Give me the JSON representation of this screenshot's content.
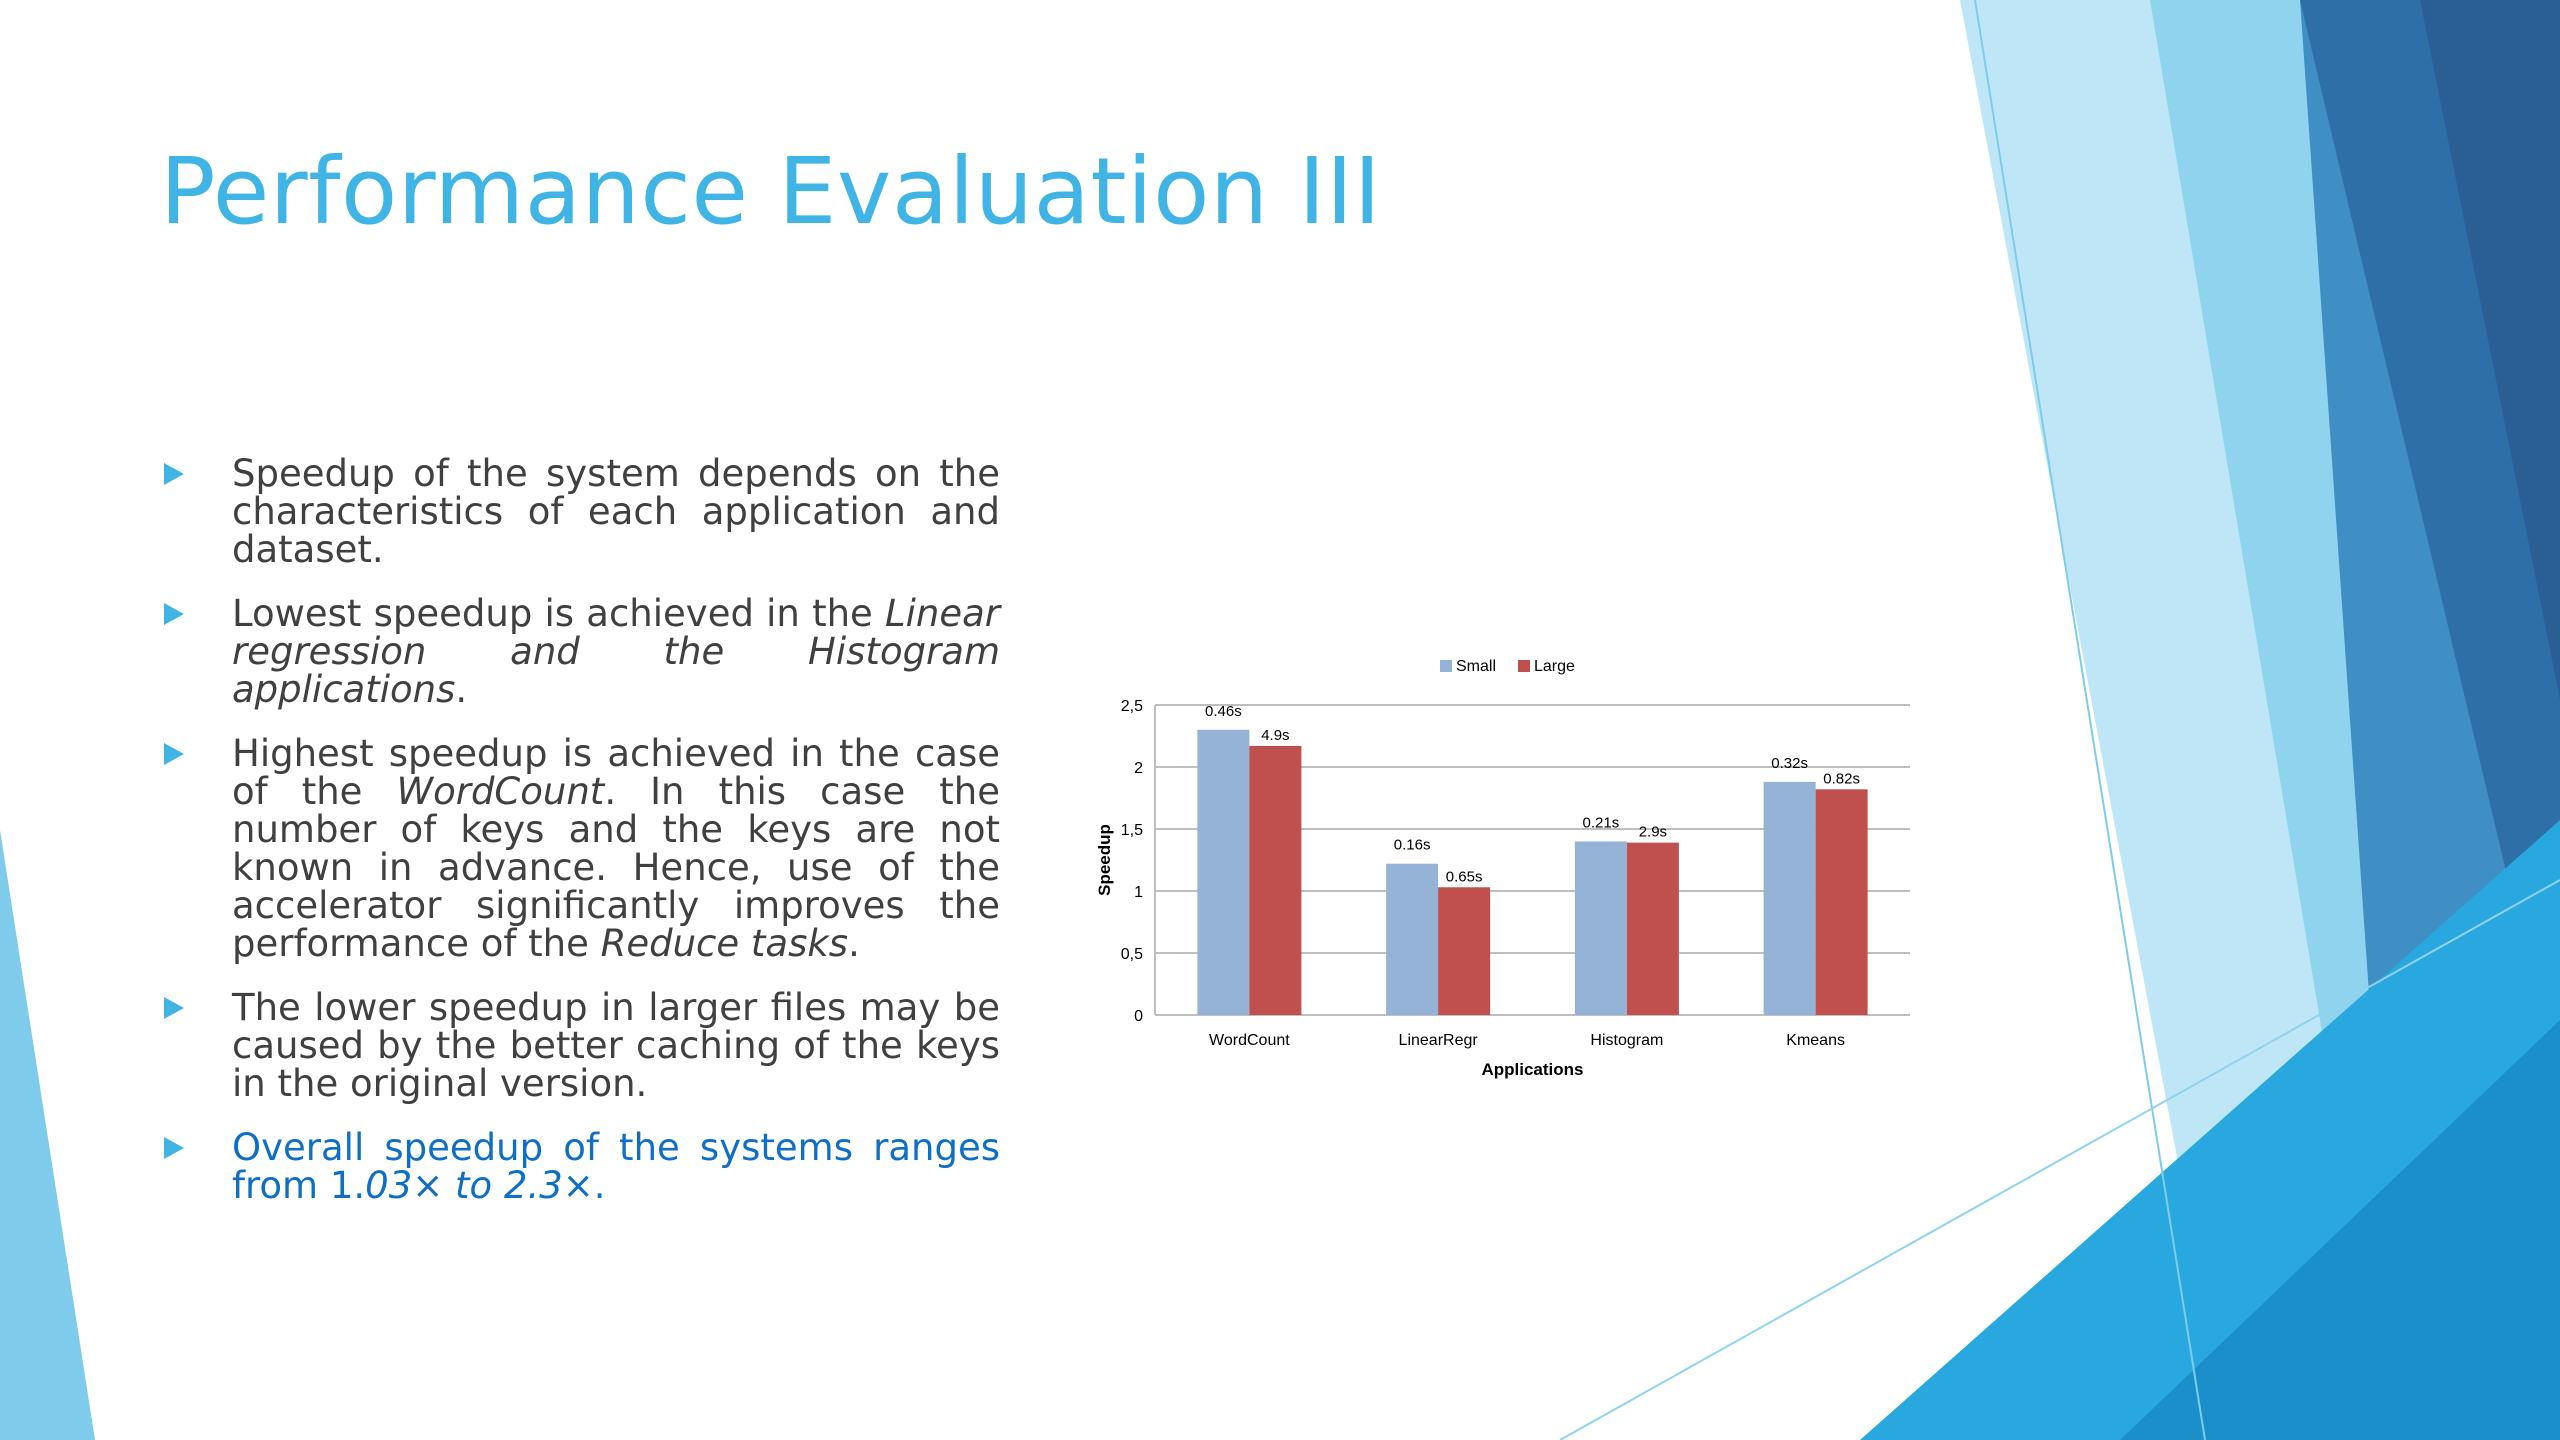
{
  "slide": {
    "title": "Performance Evaluation III",
    "bullets": [
      {
        "parts": [
          {
            "t": "Speedup of the system depends on the characteristics of each application and dataset."
          }
        ]
      },
      {
        "parts": [
          {
            "t": "Lowest speedup is achieved in the "
          },
          {
            "t": "Linear regression and the Histogram applications",
            "i": true
          },
          {
            "t": "."
          }
        ]
      },
      {
        "parts": [
          {
            "t": " Highest speedup is achieved in the case of the "
          },
          {
            "t": "WordCount",
            "i": true
          },
          {
            "t": ". In this case the number of keys and the keys are not known in advance. Hence, use of the accelerator significantly improves the performance of the "
          },
          {
            "t": "Reduce tasks",
            "i": true
          },
          {
            "t": "."
          }
        ]
      },
      {
        "parts": [
          {
            "t": "The lower speedup in larger files may be caused by the better caching of the keys in the original version."
          }
        ]
      },
      {
        "blue": true,
        "parts": [
          {
            "t": "Overall speedup of the systems ranges from 1."
          },
          {
            "t": "03",
            "i": true
          },
          {
            "t": "× "
          },
          {
            "t": "to 2.3",
            "i": true
          },
          {
            "t": "×."
          }
        ]
      }
    ]
  },
  "colors": {
    "title": "#3fb4e5",
    "small": "#95b3d7",
    "large": "#c0504d",
    "grid": "#bfbfbf"
  },
  "chart_data": {
    "type": "bar",
    "categories": [
      "WordCount",
      "LinearRegr",
      "Histogram",
      "Kmeans"
    ],
    "series": [
      {
        "name": "Small",
        "values": [
          2.3,
          1.22,
          1.4,
          1.88
        ],
        "labels": [
          "0.46s",
          "0.16s",
          "0.21s",
          "0.32s"
        ]
      },
      {
        "name": "Large",
        "values": [
          2.17,
          1.03,
          1.39,
          1.82
        ],
        "labels": [
          "4.9s",
          "0.65s",
          "2.9s",
          "0.82s"
        ]
      }
    ],
    "xlabel": "Applications",
    "ylabel": "Speedup",
    "ylim": [
      0,
      2.5
    ],
    "yticks": [
      "0",
      "0,5",
      "1",
      "1,5",
      "2",
      "2,5"
    ],
    "grid": true,
    "legend": "top"
  }
}
